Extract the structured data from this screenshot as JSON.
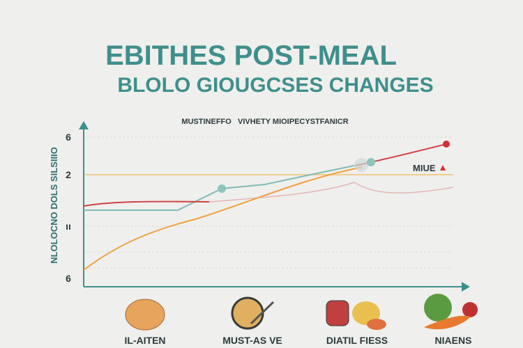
{
  "title": "EBITHES POST-MEAL",
  "subtitle": "BLOLO GIOUGCSES CHANGES",
  "legend_text": "MUSTINEFFO   VIVHETY MIOIPECYSTFANICR",
  "y_axis_label": "NLOLOCNO DOLS SILSIIIO",
  "y_tick_labels": [
    "6",
    "2",
    "ıı",
    "6"
  ],
  "line_label": "MIUE",
  "food_labels": [
    "IL-AITEN",
    "MUST-AS VE",
    "DIATIL FIESS",
    "NIAENS"
  ]
}
